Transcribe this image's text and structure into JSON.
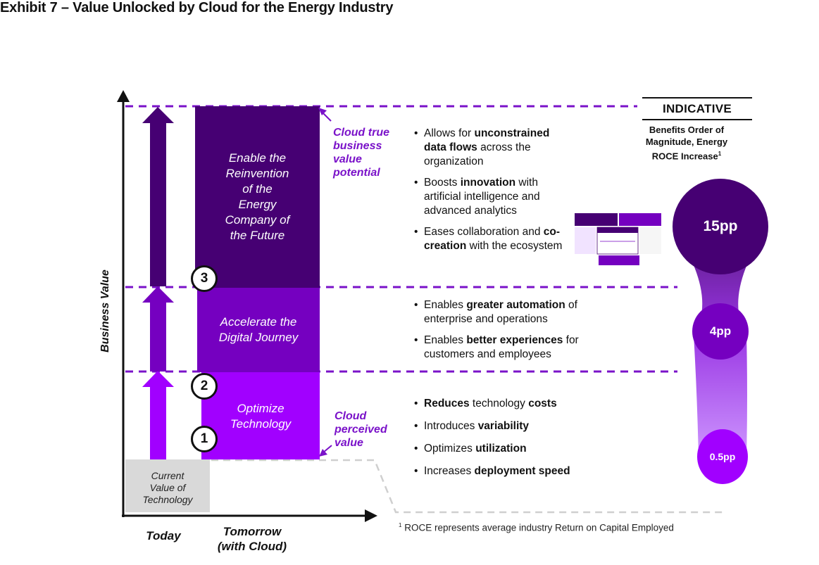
{
  "title": "Exhibit 7 – Value Unlocked by Cloud for the Energy Industry",
  "y_axis_label": "Business Value",
  "x_axis_labels": {
    "today": "Today",
    "tomorrow_line1": "Tomorrow",
    "tomorrow_line2": "(with Cloud)"
  },
  "baseline": {
    "line1": "Current",
    "line2": "Value of",
    "line3": "Technology"
  },
  "stages": [
    {
      "number": "1",
      "lines": [
        "Optimize",
        "Technology"
      ],
      "color": "#a100ff"
    },
    {
      "number": "2",
      "lines": [
        "Accelerate the",
        "Digital Journey"
      ],
      "color": "#7500c0"
    },
    {
      "number": "3",
      "lines": [
        "Enable the",
        "Reinvention",
        "of the",
        "Energy",
        "Company of",
        "the Future"
      ],
      "color": "#460073"
    }
  ],
  "callouts": {
    "true_value": [
      "Cloud true",
      "business",
      "value",
      "potential"
    ],
    "perceived_value": [
      "Cloud",
      "perceived",
      "value"
    ]
  },
  "bullets": {
    "stage3": [
      {
        "pre": "Allows for ",
        "bold": "unconstrained data flows",
        "post": " across the organization"
      },
      {
        "pre": "Boosts ",
        "bold": "innovation",
        "post": " with artificial intelligence and advanced analytics"
      },
      {
        "pre": "Eases collaboration and ",
        "bold": "co-creation",
        "post": " with the ecosystem"
      }
    ],
    "stage2": [
      {
        "pre": "Enables ",
        "bold": "greater automation",
        "post": " of enterprise and operations"
      },
      {
        "pre": "Enables ",
        "bold": "better experiences",
        "post": " for customers and employees"
      }
    ],
    "stage1": [
      {
        "pre": "",
        "bold": "Reduces",
        "post": " technology ",
        "bold2": "costs"
      },
      {
        "pre": "Introduces ",
        "bold": "variability",
        "post": ""
      },
      {
        "pre": "Optimizes ",
        "bold": "utilization",
        "post": ""
      },
      {
        "pre": "Increases ",
        "bold": "deployment speed",
        "post": ""
      }
    ]
  },
  "indicative": {
    "heading": "INDICATIVE",
    "subheading_line1": "Benefits Order of",
    "subheading_line2": "Magnitude, Energy",
    "subheading_line3": "ROCE Increase",
    "subheading_sup": "1",
    "values": [
      {
        "label": "15pp",
        "value_pp": 15
      },
      {
        "label": "4pp",
        "value_pp": 4
      },
      {
        "label": "0.5pp",
        "value_pp": 0.5
      }
    ]
  },
  "footnote": {
    "sup": "1",
    "text": " ROCE represents average industry Return on Capital Employed"
  },
  "colors": {
    "light_purple": "#a100ff",
    "mid_purple": "#7500c0",
    "dark_purple": "#460073",
    "grey": "#d9d9d9",
    "dash": "#7a12c9"
  }
}
